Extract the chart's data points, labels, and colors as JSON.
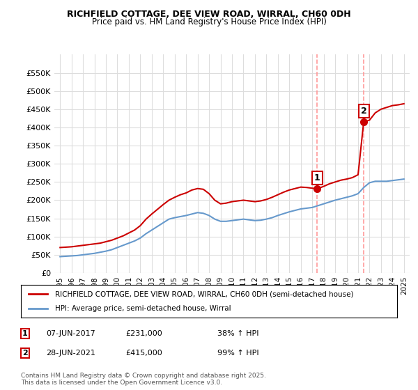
{
  "title1": "RICHFIELD COTTAGE, DEE VIEW ROAD, WIRRAL, CH60 0DH",
  "title2": "Price paid vs. HM Land Registry's House Price Index (HPI)",
  "legend1": "RICHFIELD COTTAGE, DEE VIEW ROAD, WIRRAL, CH60 0DH (semi-detached house)",
  "legend2": "HPI: Average price, semi-detached house, Wirral",
  "footnote": "Contains HM Land Registry data © Crown copyright and database right 2025.\nThis data is licensed under the Open Government Licence v3.0.",
  "purchase1": {
    "label": "1",
    "date": "07-JUN-2017",
    "price": 231000,
    "hpi_pct": "38% ↑ HPI",
    "x": 2017.44
  },
  "purchase2": {
    "label": "2",
    "date": "28-JUN-2021",
    "price": 415000,
    "hpi_pct": "99% ↑ HPI",
    "x": 2021.49
  },
  "red_line_color": "#cc0000",
  "blue_line_color": "#6699cc",
  "marker_color": "#cc0000",
  "vline_color": "#ff9999",
  "background_color": "#ffffff",
  "grid_color": "#dddddd",
  "ylim": [
    0,
    600000
  ],
  "xlim": [
    1994.5,
    2025.5
  ],
  "red_x": [
    1995.0,
    1995.5,
    1996.0,
    1996.5,
    1997.0,
    1997.5,
    1998.0,
    1998.5,
    1999.0,
    1999.5,
    2000.0,
    2000.5,
    2001.0,
    2001.5,
    2002.0,
    2002.5,
    2003.0,
    2003.5,
    2004.0,
    2004.5,
    2005.0,
    2005.5,
    2006.0,
    2006.5,
    2007.0,
    2007.5,
    2008.0,
    2008.5,
    2009.0,
    2009.5,
    2010.0,
    2010.5,
    2011.0,
    2011.5,
    2012.0,
    2012.5,
    2013.0,
    2013.5,
    2014.0,
    2014.5,
    2015.0,
    2015.5,
    2016.0,
    2016.5,
    2017.0,
    2017.44,
    2017.5,
    2018.0,
    2018.5,
    2019.0,
    2019.5,
    2020.0,
    2020.5,
    2021.0,
    2021.49,
    2022.0,
    2022.5,
    2023.0,
    2023.5,
    2024.0,
    2024.5,
    2025.0
  ],
  "red_y": [
    70000,
    71000,
    72000,
    74000,
    76000,
    78000,
    80000,
    82000,
    86000,
    90000,
    96000,
    102000,
    110000,
    118000,
    130000,
    148000,
    162000,
    175000,
    188000,
    200000,
    208000,
    215000,
    220000,
    228000,
    232000,
    230000,
    218000,
    200000,
    190000,
    192000,
    196000,
    198000,
    200000,
    198000,
    196000,
    198000,
    202000,
    208000,
    215000,
    222000,
    228000,
    232000,
    236000,
    235000,
    233000,
    231000,
    232000,
    238000,
    245000,
    250000,
    255000,
    258000,
    262000,
    270000,
    415000,
    420000,
    440000,
    450000,
    455000,
    460000,
    462000,
    465000
  ],
  "blue_x": [
    1995.0,
    1995.5,
    1996.0,
    1996.5,
    1997.0,
    1997.5,
    1998.0,
    1998.5,
    1999.0,
    1999.5,
    2000.0,
    2000.5,
    2001.0,
    2001.5,
    2002.0,
    2002.5,
    2003.0,
    2003.5,
    2004.0,
    2004.5,
    2005.0,
    2005.5,
    2006.0,
    2006.5,
    2007.0,
    2007.5,
    2008.0,
    2008.5,
    2009.0,
    2009.5,
    2010.0,
    2010.5,
    2011.0,
    2011.5,
    2012.0,
    2012.5,
    2013.0,
    2013.5,
    2014.0,
    2014.5,
    2015.0,
    2015.5,
    2016.0,
    2016.5,
    2017.0,
    2017.5,
    2018.0,
    2018.5,
    2019.0,
    2019.5,
    2020.0,
    2020.5,
    2021.0,
    2021.5,
    2022.0,
    2022.5,
    2023.0,
    2023.5,
    2024.0,
    2024.5,
    2025.0
  ],
  "blue_y": [
    45000,
    46000,
    47000,
    48000,
    50000,
    52000,
    54000,
    57000,
    60000,
    64000,
    70000,
    76000,
    82000,
    88000,
    96000,
    108000,
    118000,
    128000,
    138000,
    148000,
    152000,
    155000,
    158000,
    162000,
    166000,
    164000,
    158000,
    148000,
    142000,
    142000,
    144000,
    146000,
    148000,
    146000,
    144000,
    145000,
    148000,
    152000,
    158000,
    163000,
    168000,
    172000,
    176000,
    178000,
    180000,
    185000,
    190000,
    195000,
    200000,
    204000,
    208000,
    212000,
    218000,
    235000,
    248000,
    252000,
    252000,
    252000,
    254000,
    256000,
    258000
  ]
}
